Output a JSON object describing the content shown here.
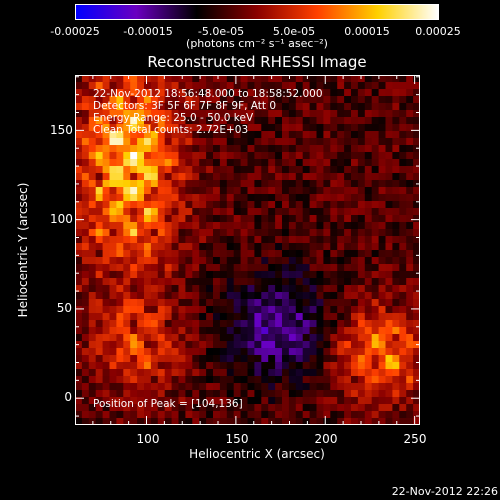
{
  "colorbar": {
    "ticks": [
      "-0.00025",
      "-0.00015",
      "-5.0e-05",
      "5.0e-05",
      "0.00015",
      "0.00025"
    ],
    "units": "(photons cm⁻² s⁻¹ asec⁻²)",
    "colors": [
      "#0000ff",
      "#6a00c0",
      "#000000",
      "#8a0000",
      "#ff4000",
      "#ffd000",
      "#ffffff"
    ]
  },
  "chart_data": {
    "type": "heatmap",
    "title": "Reconstructed RHESSI Image",
    "xlabel": "Heliocentric X (arcsec)",
    "ylabel": "Heliocentric Y (arcsec)",
    "xlim": [
      60,
      253
    ],
    "ylim": [
      -15,
      181
    ],
    "xticks": [
      100,
      150,
      200,
      250
    ],
    "yticks": [
      0,
      50,
      100,
      150
    ],
    "vmin": -0.00025,
    "vmax": 0.00025,
    "annotations": [
      "22-Nov-2012 18:56:48.000 to 18:58:52.000",
      "Detectors: 3F 5F 6F 7F 8F 9F, Att 0",
      "Energy Range: 25.0 - 50.0 keV",
      "Clean    Total counts: 2.72E+03"
    ],
    "peak_label": "Position of Peak = [104,136]"
  },
  "footer": "22-Nov-2012 22:26"
}
